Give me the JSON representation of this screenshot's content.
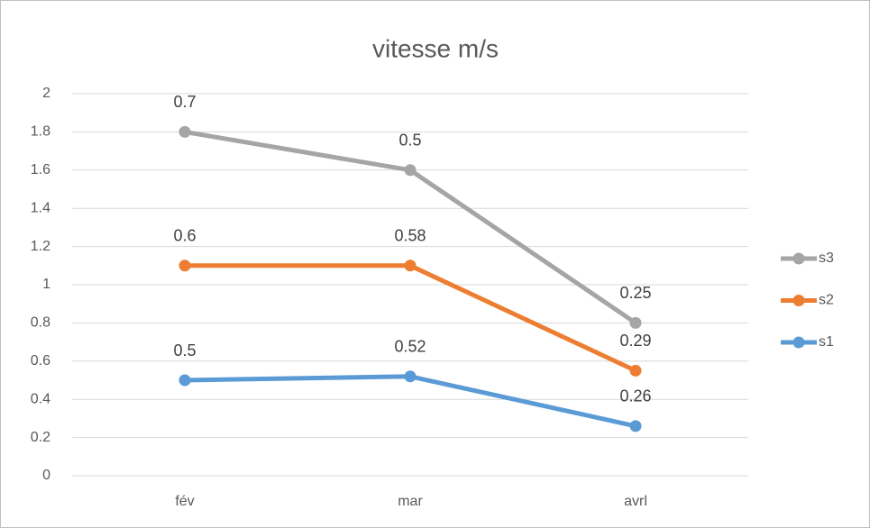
{
  "chart_data": {
    "type": "line",
    "stacked": true,
    "title": "vitesse m/s",
    "categories": [
      "fév",
      "mar",
      "avrl"
    ],
    "series": [
      {
        "name": "s1",
        "color": "#5b9bd5",
        "values": [
          0.5,
          0.52,
          0.26
        ]
      },
      {
        "name": "s2",
        "color": "#ed7d31",
        "values": [
          0.6,
          0.58,
          0.29
        ]
      },
      {
        "name": "s3",
        "color": "#a5a5a5",
        "values": [
          0.7,
          0.5,
          0.25
        ]
      }
    ],
    "ylim": [
      0,
      2
    ],
    "yticks": [
      0,
      0.2,
      0.4,
      0.6,
      0.8,
      1,
      1.2,
      1.4,
      1.6,
      1.8,
      2
    ],
    "grid": true,
    "legend": "right"
  }
}
